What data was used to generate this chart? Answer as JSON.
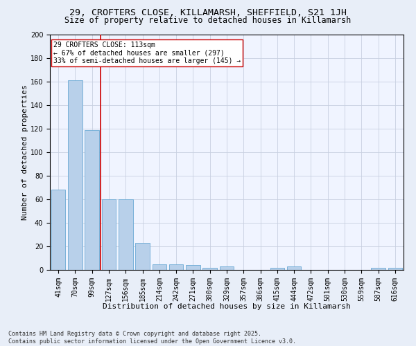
{
  "title1": "29, CROFTERS CLOSE, KILLAMARSH, SHEFFIELD, S21 1JH",
  "title2": "Size of property relative to detached houses in Killamarsh",
  "xlabel": "Distribution of detached houses by size in Killamarsh",
  "ylabel": "Number of detached properties",
  "categories": [
    "41sqm",
    "70sqm",
    "99sqm",
    "127sqm",
    "156sqm",
    "185sqm",
    "214sqm",
    "242sqm",
    "271sqm",
    "300sqm",
    "329sqm",
    "357sqm",
    "386sqm",
    "415sqm",
    "444sqm",
    "472sqm",
    "501sqm",
    "530sqm",
    "559sqm",
    "587sqm",
    "616sqm"
  ],
  "values": [
    68,
    161,
    119,
    60,
    60,
    23,
    5,
    5,
    4,
    2,
    3,
    0,
    0,
    2,
    3,
    0,
    0,
    0,
    0,
    2,
    2
  ],
  "bar_color": "#b8d0ea",
  "bar_edge_color": "#6aaad4",
  "vline_color": "#cc0000",
  "annotation_text": "29 CROFTERS CLOSE: 113sqm\n← 67% of detached houses are smaller (297)\n33% of semi-detached houses are larger (145) →",
  "annotation_box_color": "#ffffff",
  "annotation_box_edge": "#cc0000",
  "ylim": [
    0,
    200
  ],
  "yticks": [
    0,
    20,
    40,
    60,
    80,
    100,
    120,
    140,
    160,
    180,
    200
  ],
  "footer1": "Contains HM Land Registry data © Crown copyright and database right 2025.",
  "footer2": "Contains public sector information licensed under the Open Government Licence v3.0.",
  "bg_color": "#e8eef8",
  "plot_bg_color": "#f0f4ff",
  "grid_color": "#c8d0e0",
  "title_fontsize": 9.5,
  "subtitle_fontsize": 8.5,
  "tick_fontsize": 7,
  "label_fontsize": 8,
  "footer_fontsize": 6,
  "annot_fontsize": 7
}
